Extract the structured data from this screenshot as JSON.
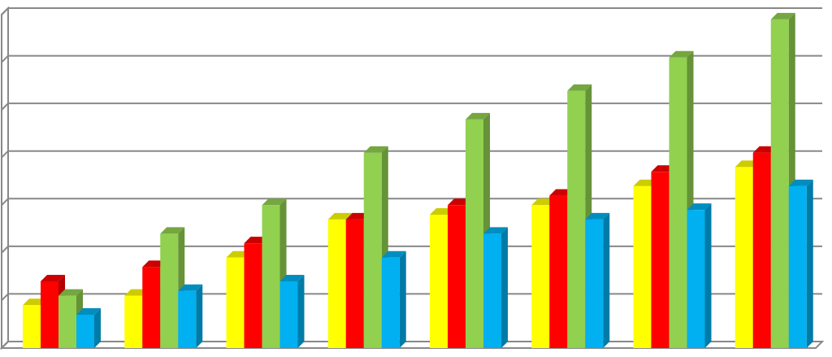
{
  "chart_data": {
    "type": "bar3d",
    "categories": [
      null,
      null,
      null,
      null,
      null,
      null,
      null,
      null
    ],
    "series": [
      {
        "color": "#ffff00",
        "values": [
          0.9,
          1.1,
          1.9,
          2.7,
          2.8,
          3.0,
          3.4,
          3.8
        ]
      },
      {
        "color": "#ff0000",
        "values": [
          1.4,
          1.7,
          2.2,
          2.7,
          3.0,
          3.2,
          3.7,
          4.1
        ]
      },
      {
        "color": "#92d050",
        "values": [
          1.1,
          2.4,
          3.0,
          4.1,
          4.8,
          5.4,
          6.1,
          6.9
        ]
      },
      {
        "color": "#00b0f0",
        "values": [
          0.7,
          1.2,
          1.4,
          1.9,
          2.4,
          2.7,
          2.9,
          3.4
        ]
      }
    ],
    "ylim": [
      0,
      7
    ],
    "yticks": [
      0,
      1,
      2,
      3,
      4,
      5,
      6,
      7
    ],
    "grid": true
  }
}
